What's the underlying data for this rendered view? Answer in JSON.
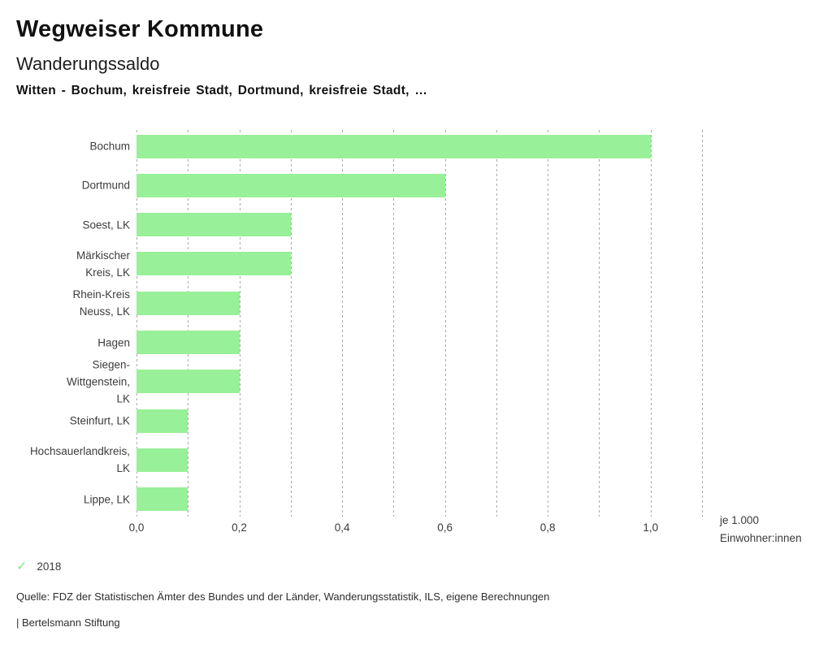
{
  "header": {
    "app_title": "Wegweiser Kommune",
    "chart_title": "Wanderungssaldo",
    "chart_subtitle": "Witten - Bochum, kreisfreie Stadt, Dortmund, kreisfreie Stadt, …"
  },
  "chart_data": {
    "type": "bar",
    "orientation": "horizontal",
    "title": "Wanderungssaldo",
    "subtitle": "Witten - Bochum, kreisfreie Stadt, Dortmund, kreisfreie Stadt, …",
    "categories": [
      "Bochum",
      "Dortmund",
      "Soest, LK",
      "Märkischer Kreis, LK",
      "Rhein-Kreis Neuss, LK",
      "Hagen",
      "Siegen-Wittgenstein, LK",
      "Steinfurt, LK",
      "Hochsauerlandkreis, LK",
      "Lippe, LK"
    ],
    "category_lines": [
      [
        "Bochum"
      ],
      [
        "Dortmund"
      ],
      [
        "Soest, LK"
      ],
      [
        "Märkischer",
        "Kreis, LK"
      ],
      [
        "Rhein-Kreis",
        "Neuss, LK"
      ],
      [
        "Hagen"
      ],
      [
        "Siegen-",
        "Wittgenstein,",
        "LK"
      ],
      [
        "Steinfurt, LK"
      ],
      [
        "Hochsauerlandkreis,",
        "LK"
      ],
      [
        "Lippe, LK"
      ]
    ],
    "series": [
      {
        "name": "2018",
        "values": [
          1.0,
          0.6,
          0.3,
          0.3,
          0.2,
          0.2,
          0.2,
          0.1,
          0.1,
          0.1
        ]
      }
    ],
    "xlabel": "je 1.000 Einwohner:innen",
    "ylabel": "",
    "xlim": [
      0,
      1.1
    ],
    "xticks": [
      0.0,
      0.2,
      0.4,
      0.6,
      0.8,
      1.0
    ],
    "xtick_labels": [
      "0,0",
      "0,2",
      "0,4",
      "0,6",
      "0,8",
      "1,0"
    ],
    "gridline_step": 0.1,
    "grid": true,
    "legend_position": "bottom-left",
    "bar_color": "#98f098",
    "gridline_color": "#ababab"
  },
  "axis": {
    "unit_line1": "je 1.000",
    "unit_line2": "Einwohner:innen"
  },
  "legend": {
    "check_icon": "✓",
    "year_label": "2018"
  },
  "footer": {
    "source": "Quelle: FDZ der Statistischen Ämter des Bundes und der Länder, Wanderungsstatistik, ILS, eigene Berechnungen",
    "attribution": "| Bertelsmann Stiftung"
  }
}
